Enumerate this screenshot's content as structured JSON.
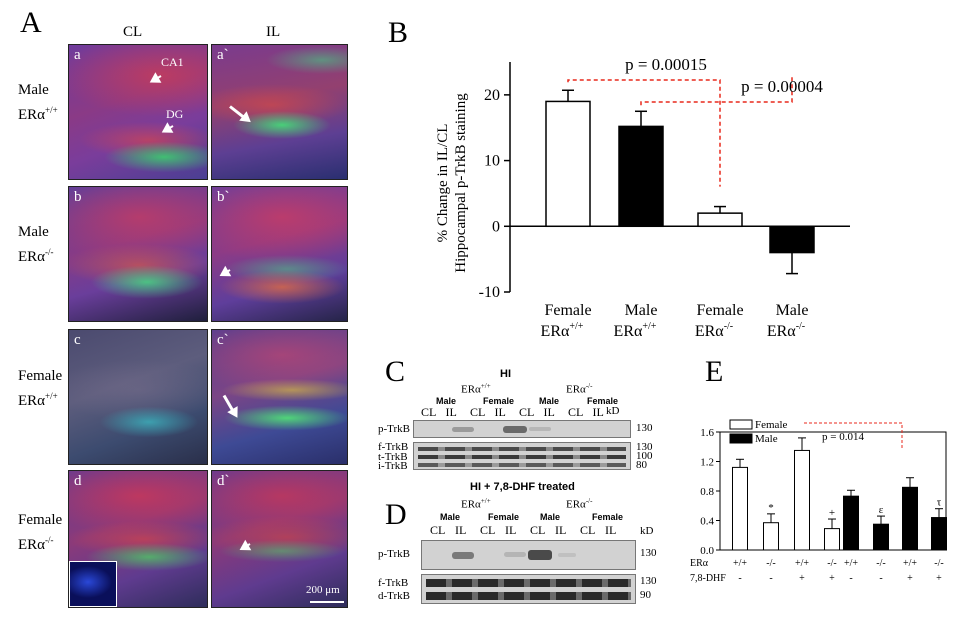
{
  "panelA": {
    "letter": "A",
    "col_cl": "CL",
    "col_il": "IL",
    "rows": [
      {
        "line1": "Male",
        "line2_base": "ERα",
        "line2_sup": "+/+",
        "left_tag": "a",
        "right_tag": "a`"
      },
      {
        "line1": "Male",
        "line2_base": "ERα",
        "line2_sup": "-/-",
        "left_tag": "b",
        "right_tag": "b`"
      },
      {
        "line1": "Female",
        "line2_base": "ERα",
        "line2_sup": "+/+",
        "left_tag": "c",
        "right_tag": "c`"
      },
      {
        "line1": "Female",
        "line2_base": "ERα",
        "line2_sup": "-/-",
        "left_tag": "d",
        "right_tag": "d`"
      }
    ],
    "ca1_label": "CA1",
    "dg_label": "DG",
    "scale_label": "200 μm"
  },
  "panelB": {
    "letter": "B",
    "chart_data": {
      "type": "bar",
      "ylabel_line1": "% Change in IL/CL",
      "ylabel_line2": "Hippocampal p-TrkB staining",
      "ylim": [
        -10,
        25
      ],
      "yticks": [
        -10,
        0,
        10,
        20
      ],
      "categories": [
        {
          "line1": "Female",
          "base": "ERα",
          "sup": "+/+"
        },
        {
          "line1": "Male",
          "base": "ERα",
          "sup": "+/+"
        },
        {
          "line1": "Female",
          "base": "ERα",
          "sup": "-/-"
        },
        {
          "line1": "Male",
          "base": "ERα",
          "sup": "-/-"
        }
      ],
      "values": [
        19,
        15.2,
        2,
        -4
      ],
      "errors": [
        1.7,
        2.3,
        1.0,
        3.2
      ],
      "fills": [
        "#ffffff",
        "#000000",
        "#ffffff",
        "#000000"
      ],
      "annotations": [
        {
          "text": "p = 0.00015",
          "from": 0,
          "to": 2
        },
        {
          "text": "p = 0.00004",
          "from": 1,
          "to": 3
        }
      ],
      "annotation_color": "#e8291c"
    }
  },
  "panelC": {
    "letter": "C",
    "title": "HI",
    "group1_base": "ERα",
    "group1_sup": "+/+",
    "group2_base": "ERα",
    "group2_sup": "-/-",
    "sex_labels": [
      "Male",
      "Female",
      "Male",
      "Female"
    ],
    "lanes": [
      "CL",
      "IL",
      "CL",
      "IL",
      "CL",
      "IL",
      "CL",
      "IL"
    ],
    "kd_label": "kD",
    "row_labels": [
      "p-TrkB",
      "f-TrkB",
      "t-TrkB",
      "i-TrkB"
    ],
    "markers": [
      "130",
      "130",
      "100",
      "80"
    ]
  },
  "panelD": {
    "letter": "D",
    "title": "HI + 7,8-DHF treated",
    "group1_base": "ERα",
    "group1_sup": "+/+",
    "group2_base": "ERα",
    "group2_sup": "-/-",
    "sex_labels": [
      "Male",
      "Female",
      "Male",
      "Female"
    ],
    "lanes": [
      "CL",
      "IL",
      "CL",
      "IL",
      "CL",
      "IL",
      "CL",
      "IL"
    ],
    "kd_label": "kD",
    "row_labels": [
      "p-TrkB",
      "f-TrkB",
      "d-TrkB"
    ],
    "markers": [
      "130",
      "130",
      "90"
    ]
  },
  "panelE": {
    "letter": "E",
    "chart_data": {
      "type": "bar",
      "ylim": [
        0,
        1.6
      ],
      "yticks": [
        "0.0",
        "0.4",
        "0.8",
        "1.2",
        "1.6"
      ],
      "legend": [
        {
          "name": "Female",
          "fill": "#ffffff"
        },
        {
          "name": "Male",
          "fill": "#000000"
        }
      ],
      "series": [
        {
          "name": "Female",
          "values": [
            1.12,
            0.37,
            1.35,
            0.29
          ],
          "errors": [
            0.11,
            0.12,
            0.17,
            0.13
          ],
          "marks": [
            "",
            "*",
            "",
            "+"
          ]
        },
        {
          "name": "Male",
          "values": [
            0.73,
            0.35,
            0.85,
            0.44
          ],
          "errors": [
            0.08,
            0.11,
            0.13,
            0.12
          ],
          "marks": [
            "",
            "ε",
            "",
            "τ"
          ]
        }
      ],
      "row1_label": "ERα",
      "row1_values": [
        "+/+",
        "-/-",
        "+/+",
        "-/-"
      ],
      "row2_label": "7,8-DHF",
      "row2_values": [
        "-",
        "-",
        "+",
        "+"
      ],
      "annotation": "p = 0.014",
      "annotation_color": "#e8291c"
    }
  }
}
